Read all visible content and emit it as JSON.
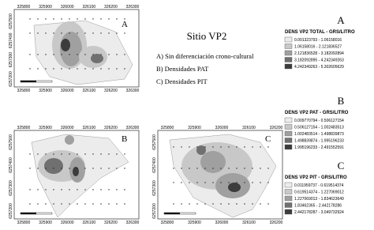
{
  "title": "Sitio VP2",
  "captions": [
    "A) Sin diferenciación crono-cultural",
    "B) Densidades PAT",
    "C) Densidades PIT"
  ],
  "maps": [
    {
      "label": "A",
      "xticks": [
        "325800",
        "325900",
        "326000",
        "326100",
        "326200",
        "326300"
      ],
      "yticks": [
        "6257500",
        "6257400",
        "6257300",
        "6257200"
      ]
    },
    {
      "label": "B",
      "xticks": [
        "325800",
        "325900",
        "326000",
        "326100",
        "326200",
        "326300"
      ],
      "yticks": [
        "6257500",
        "6257400",
        "6257300",
        "6257200"
      ]
    },
    {
      "label": "C",
      "xticks": [
        "325800",
        "325900",
        "326000",
        "326100",
        "326200"
      ],
      "yticks": [
        "6257500",
        "6257400",
        "6257300",
        "6257200"
      ]
    }
  ],
  "legends": [
    {
      "letter": "A",
      "title": "DENS VP2 TOTAL - GRS/LITRO",
      "classes": [
        "0.001323793 - 1.06158016",
        "1.06158016 - 2.121836527",
        "2.121836528 - 3.182092894",
        "3.182092895 - 4.242349263",
        "4.242349263 - 5.302605629"
      ]
    },
    {
      "letter": "B",
      "title": "DENS VP2 PAT - GRS/LITRO",
      "classes": [
        "0.009770794 - 0.506127154",
        "0.506127154 - 1.002483513",
        "1.002483514 - 1.498839873",
        "1.498839874 - 1.995196233",
        "1.995196233 - 2.491552591"
      ]
    },
    {
      "letter": "C",
      "title": "DENS VP2 PIT - GRS/LITRO",
      "classes": [
        "0.011959737 - 0.619514374",
        "0.619514374 - 1.227069012",
        "1.227069013 - 1.834623649",
        "1.83462365 - 2.442178286",
        "2.442178287 - 3.049732924"
      ]
    }
  ]
}
